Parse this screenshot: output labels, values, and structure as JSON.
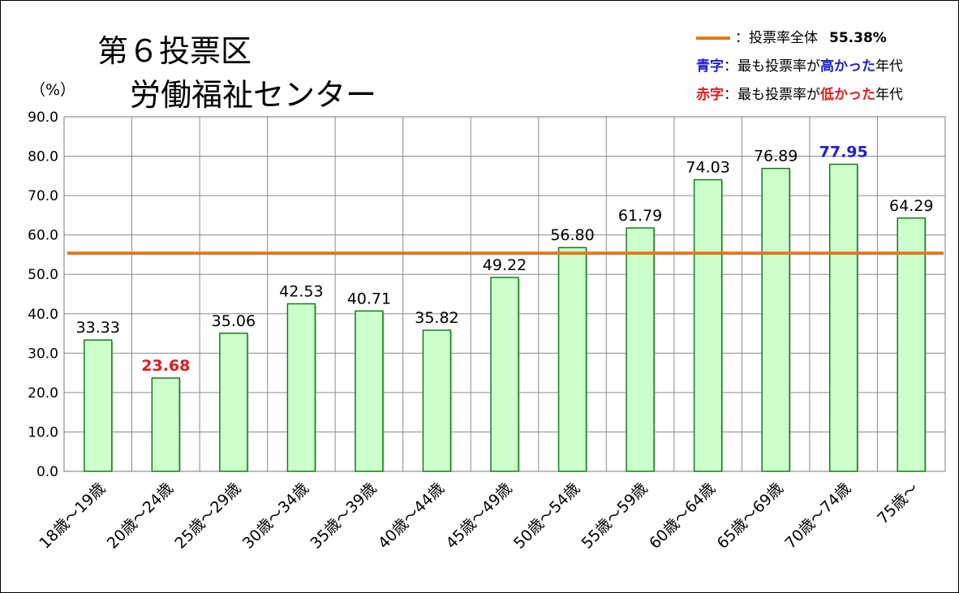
{
  "title_line1": "第６投票区",
  "title_line2": "労働福祉センター",
  "unit_label": "（%）",
  "legend": {
    "overall_label": "：投票率全体",
    "overall_value": "55.38%",
    "overall_color": "#e07a1f",
    "high_prefix": "青字",
    "high_text_a": "：最も投票率が",
    "high_text_b": "高かった",
    "high_text_c": "年代",
    "low_prefix": "赤字",
    "low_text_a": "：最も投票率が",
    "low_text_b": "低かった",
    "low_text_c": "年代"
  },
  "chart_data": {
    "type": "bar",
    "categories": [
      "18歳～19歳",
      "20歳～24歳",
      "25歳～29歳",
      "30歳～34歳",
      "35歳～39歳",
      "40歳～44歳",
      "45歳～49歳",
      "50歳～54歳",
      "55歳～59歳",
      "60歳～64歳",
      "65歳～69歳",
      "70歳～74歳",
      "75歳～"
    ],
    "values": [
      33.33,
      23.68,
      35.06,
      42.53,
      40.71,
      35.82,
      49.22,
      56.8,
      61.79,
      74.03,
      76.89,
      77.95,
      64.29
    ],
    "value_labels": [
      "33.33",
      "23.68",
      "35.06",
      "42.53",
      "40.71",
      "35.82",
      "49.22",
      "56.80",
      "61.79",
      "74.03",
      "76.89",
      "77.95",
      "64.29"
    ],
    "highest_index": 11,
    "lowest_index": 1,
    "reference_line": 55.38,
    "ylim": [
      0,
      90
    ],
    "yticks": [
      "0.0",
      "10.0",
      "20.0",
      "30.0",
      "40.0",
      "50.0",
      "60.0",
      "70.0",
      "80.0",
      "90.0"
    ],
    "grid": true,
    "legend_position": "top-right",
    "bar_fill": "#ccffcc",
    "bar_stroke": "#1a7a1a",
    "high_color": "#1f1fd0",
    "low_color": "#e01b1b"
  }
}
